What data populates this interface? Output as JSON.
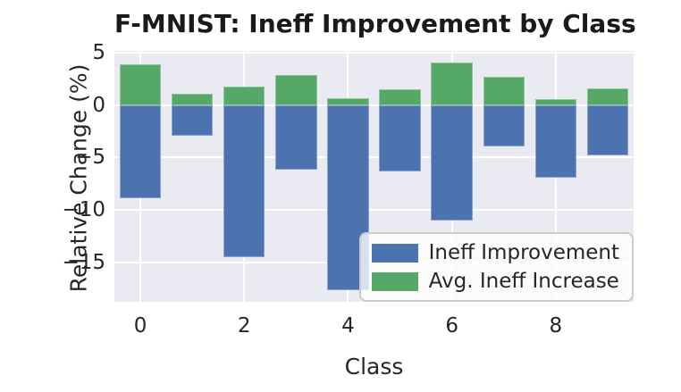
{
  "title": "F-MNIST: Ineff Improvement by Class",
  "axes": {
    "xlabel": "Class",
    "ylabel": "Relative Change (%)",
    "ytick_labels": [
      "5",
      "0",
      "−5",
      "−10",
      "−15"
    ],
    "xtick_labels": [
      "0",
      "2",
      "4",
      "6",
      "8"
    ]
  },
  "legend": {
    "items": [
      {
        "label": "Ineff Improvement",
        "color": "#4c72b0"
      },
      {
        "label": "Avg. Ineff Increase",
        "color": "#55a868"
      }
    ]
  },
  "colors": {
    "blue": "#4c72b0",
    "green": "#55a868",
    "plot_background": "#eaeaf2",
    "grid": "#ffffff",
    "text": "#262626"
  },
  "chart_data": {
    "type": "bar",
    "title": "F-MNIST: Ineff Improvement by Class",
    "xlabel": "Class",
    "ylabel": "Relative Change (%)",
    "categories": [
      0,
      1,
      2,
      3,
      4,
      5,
      6,
      7,
      8,
      9
    ],
    "series": [
      {
        "name": "Ineff Improvement",
        "color": "#4c72b0",
        "values": [
          -8.9,
          -2.9,
          -14.5,
          -6.2,
          -17.7,
          -6.3,
          -11.0,
          -3.9,
          -6.9,
          -4.8
        ]
      },
      {
        "name": "Avg. Ineff Increase",
        "color": "#55a868",
        "values": [
          3.9,
          1.1,
          1.8,
          2.9,
          0.7,
          1.5,
          4.1,
          2.7,
          0.6,
          1.6
        ]
      }
    ],
    "xticks": [
      0,
      2,
      4,
      6,
      8
    ],
    "yticks": [
      5,
      0,
      -5,
      -10,
      -15
    ],
    "xlim": [
      -0.5,
      9.5
    ],
    "ylim": [
      -18.8,
      5.2
    ],
    "bar_width": 0.8,
    "grid": true,
    "legend_position": "lower right"
  }
}
